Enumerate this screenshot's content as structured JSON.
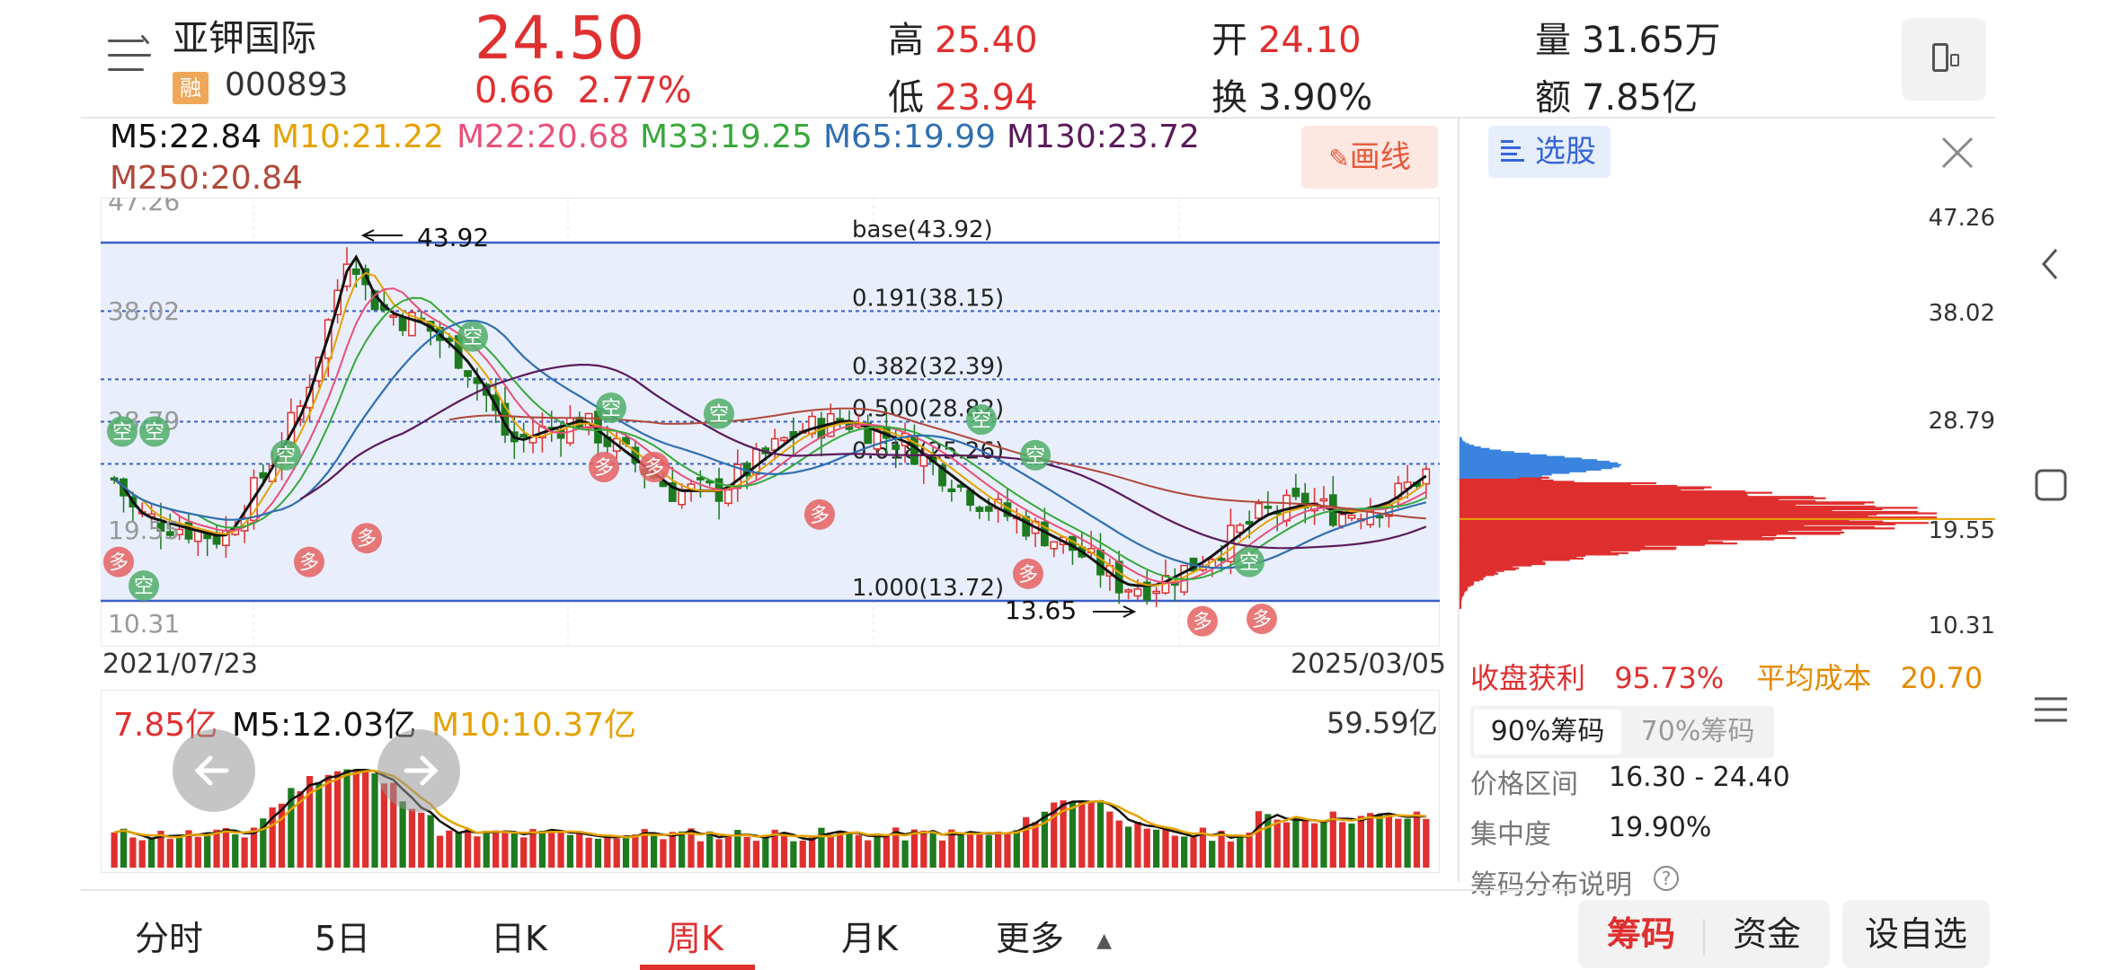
{
  "header": {
    "stock_name": "亚钾国际",
    "badge": "融",
    "code": "000893",
    "price": "24.50",
    "change": "0.66",
    "change_pct": "2.77%",
    "high_label": "高",
    "high": "25.40",
    "low_label": "低",
    "low": "23.94",
    "open_label": "开",
    "open": "24.10",
    "turnover_label": "换",
    "turnover": "3.90%",
    "volume_label": "量",
    "volume": "31.65万",
    "amount_label": "额",
    "amount": "7.85亿"
  },
  "ma_legend": [
    {
      "text": "M5:22.84",
      "color": "#111111"
    },
    {
      "text": "M10:21.22",
      "color": "#e5a200"
    },
    {
      "text": "M22:20.68",
      "color": "#e8507a"
    },
    {
      "text": "M33:19.25",
      "color": "#38a83a"
    },
    {
      "text": "M65:19.99",
      "color": "#2f6fb0"
    },
    {
      "text": "M130:23.72",
      "color": "#5a1a5a"
    },
    {
      "text": "M250:20.84",
      "color": "#b0483a"
    }
  ],
  "draw_button": "画线",
  "kchart": {
    "y_ticks": [
      "47.26",
      "38.02",
      "28.79",
      "19.55",
      "10.31"
    ],
    "high_marker": "43.92",
    "low_marker": "13.65",
    "fib_levels": [
      {
        "label": "base(43.92)",
        "value": 43.92
      },
      {
        "label": "0.191(38.15)",
        "value": 38.15
      },
      {
        "label": "0.382(32.39)",
        "value": 32.39
      },
      {
        "label": "0.500(28.82)",
        "value": 28.82
      },
      {
        "label": "0.618(25.26)",
        "value": 25.26
      },
      {
        "label": "1.000(13.72)",
        "value": 13.72
      }
    ],
    "date_start": "2021/07/23",
    "date_end": "2025/03/05"
  },
  "signals": {
    "kong": "空",
    "duo": "多"
  },
  "volume": {
    "current": "7.85亿",
    "m5": "M5:12.03亿",
    "m10": "M10:10.37亿",
    "max": "59.59亿"
  },
  "chip": {
    "select_label": "选股",
    "axis": [
      "47.26",
      "38.02",
      "28.79",
      "19.55",
      "10.31"
    ],
    "profit_label": "收盘获利",
    "profit_value": "95.73%",
    "avg_cost_label": "平均成本",
    "avg_cost_value": "20.70",
    "tab_90": "90%筹码",
    "tab_70": "70%筹码",
    "range_label": "价格区间",
    "range_value": "16.30 - 24.40",
    "concentration_label": "集中度",
    "concentration_value": "19.90%",
    "explain_label": "筹码分布说明",
    "help": "?"
  },
  "bottom_tabs": [
    "分时",
    "5日",
    "日K",
    "周K",
    "月K",
    "更多"
  ],
  "bottom_buttons": {
    "chip": "筹码",
    "fund": "资金",
    "watch": "设自选"
  },
  "colors": {
    "up": "#e02f2f",
    "down": "#1e7a1e",
    "fib_band": "#e8eefc",
    "fib_line": "#3a5fc8"
  }
}
